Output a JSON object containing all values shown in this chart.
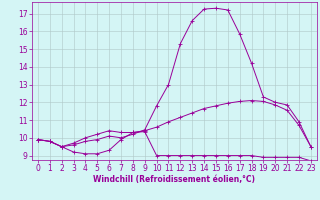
{
  "xlabel": "Windchill (Refroidissement éolien,°C)",
  "bg_color": "#d4f5f5",
  "line_color": "#990099",
  "grid_color": "#b0c8c8",
  "x_ticks": [
    0,
    1,
    2,
    3,
    4,
    5,
    6,
    7,
    8,
    9,
    10,
    11,
    12,
    13,
    14,
    15,
    16,
    17,
    18,
    19,
    20,
    21,
    22,
    23
  ],
  "y_ticks": [
    9,
    10,
    11,
    12,
    13,
    14,
    15,
    16,
    17
  ],
  "xlim": [
    -0.5,
    23.5
  ],
  "ylim": [
    8.75,
    17.65
  ],
  "line1_x": [
    0,
    1,
    2,
    3,
    4,
    5,
    6,
    7,
    8,
    9,
    10,
    11,
    12,
    13,
    14,
    15,
    16,
    17,
    18,
    19,
    20,
    21,
    22,
    23
  ],
  "line1_y": [
    9.9,
    9.8,
    9.5,
    9.2,
    9.1,
    9.1,
    9.3,
    9.9,
    10.3,
    10.35,
    9.0,
    9.0,
    9.0,
    9.0,
    9.0,
    9.0,
    9.0,
    9.0,
    9.0,
    8.9,
    8.9,
    8.9,
    8.9,
    8.7
  ],
  "line2_x": [
    0,
    1,
    2,
    3,
    4,
    5,
    6,
    7,
    8,
    9,
    10,
    11,
    12,
    13,
    14,
    15,
    16,
    17,
    18,
    19,
    20,
    21,
    22,
    23
  ],
  "line2_y": [
    9.9,
    9.8,
    9.5,
    9.7,
    10.0,
    10.2,
    10.4,
    10.3,
    10.3,
    10.4,
    10.6,
    10.9,
    11.15,
    11.4,
    11.65,
    11.8,
    11.95,
    12.05,
    12.1,
    12.05,
    11.85,
    11.55,
    10.7,
    9.5
  ],
  "line3_x": [
    0,
    1,
    2,
    3,
    4,
    5,
    6,
    7,
    8,
    9,
    10,
    11,
    12,
    13,
    14,
    15,
    16,
    17,
    18,
    19,
    20,
    21,
    22,
    23
  ],
  "line3_y": [
    9.9,
    9.8,
    9.5,
    9.6,
    9.8,
    9.9,
    10.1,
    10.0,
    10.2,
    10.45,
    11.8,
    13.0,
    15.3,
    16.6,
    17.25,
    17.3,
    17.2,
    15.85,
    14.2,
    12.3,
    12.0,
    11.85,
    10.9,
    9.5
  ],
  "tick_fontsize": 5.5,
  "xlabel_fontsize": 5.5,
  "marker_size": 2.5,
  "linewidth": 0.7
}
